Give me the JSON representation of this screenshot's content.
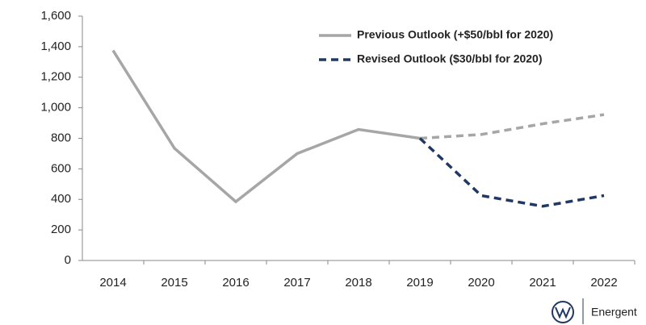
{
  "chart_data": {
    "type": "line",
    "categories": [
      "2014",
      "2015",
      "2016",
      "2017",
      "2018",
      "2019",
      "2020",
      "2021",
      "2022"
    ],
    "series": [
      {
        "name": "Previous Outlook (+$50/bbl for 2020)",
        "color": "#a6a6a6",
        "style": "solid",
        "forecast_style": "dashed",
        "values": [
          1375,
          735,
          385,
          700,
          858,
          800,
          825,
          895,
          955
        ]
      },
      {
        "name": "Revised Outlook ($30/bbl for 2020)",
        "color": "#1f3864",
        "style": "dashed",
        "values": [
          null,
          null,
          null,
          null,
          null,
          800,
          425,
          355,
          425
        ]
      }
    ],
    "forecast_from": "2019",
    "ylim": [
      0,
      1600
    ],
    "yticks": [
      0,
      200,
      400,
      600,
      800,
      {
        "value": 1000,
        "label": "1,000"
      },
      {
        "value": 1200,
        "label": "1,200"
      },
      {
        "value": 1400,
        "label": "1,400"
      },
      {
        "value": 1600,
        "label": "1,600"
      }
    ],
    "grid": false,
    "legend": "top-right"
  },
  "footer": {
    "logo_text": "Energent"
  }
}
